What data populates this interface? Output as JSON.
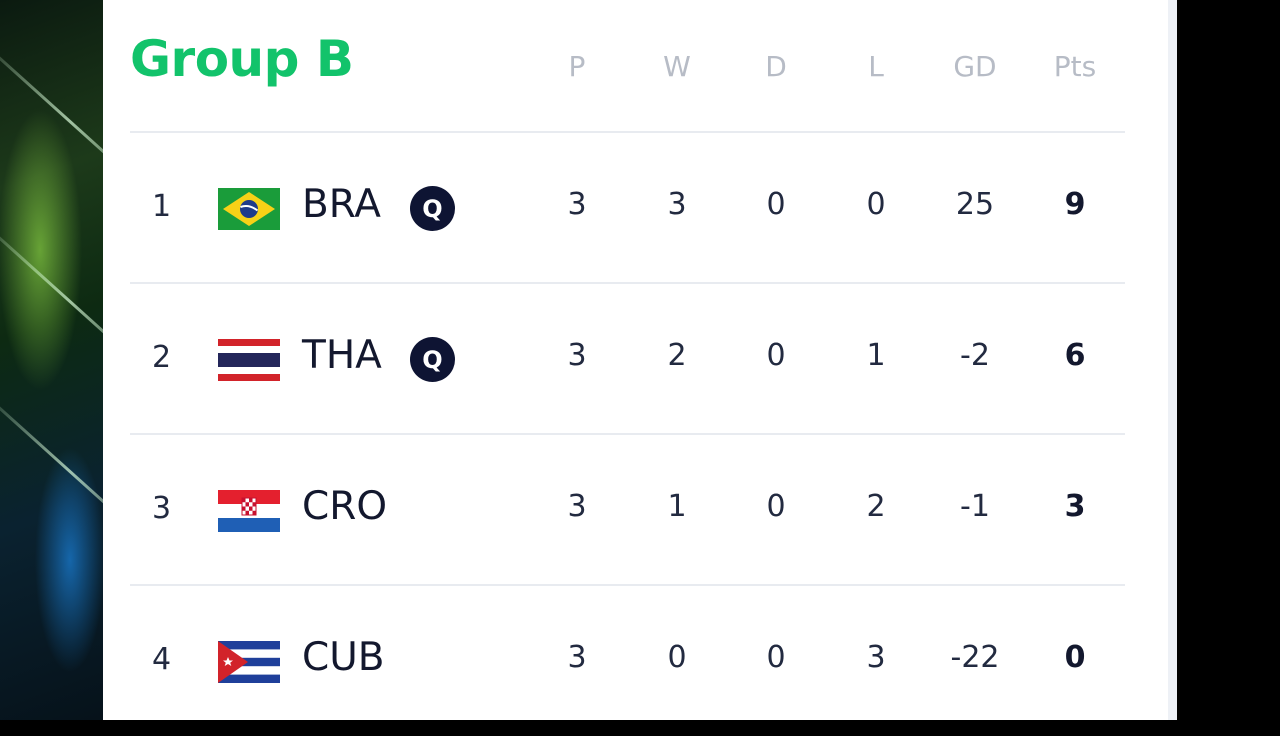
{
  "group": {
    "title": "Group B"
  },
  "columns": [
    "P",
    "W",
    "D",
    "L",
    "GD",
    "Pts"
  ],
  "colors": {
    "accent": "#12c36b",
    "badge": "#0e1433"
  },
  "rows": [
    {
      "rank": "1",
      "team": "BRA",
      "flag_icon": "brazil-flag-icon",
      "qualified": "Q",
      "p": "3",
      "w": "3",
      "d": "0",
      "l": "0",
      "gd": "25",
      "pts": "9"
    },
    {
      "rank": "2",
      "team": "THA",
      "flag_icon": "thailand-flag-icon",
      "qualified": "Q",
      "p": "3",
      "w": "2",
      "d": "0",
      "l": "1",
      "gd": "-2",
      "pts": "6"
    },
    {
      "rank": "3",
      "team": "CRO",
      "flag_icon": "croatia-flag-icon",
      "p": "3",
      "w": "1",
      "d": "0",
      "l": "2",
      "gd": "-1",
      "pts": "3"
    },
    {
      "rank": "4",
      "team": "CUB",
      "flag_icon": "cuba-flag-icon",
      "p": "3",
      "w": "0",
      "d": "0",
      "l": "3",
      "gd": "-22",
      "pts": "0"
    }
  ]
}
